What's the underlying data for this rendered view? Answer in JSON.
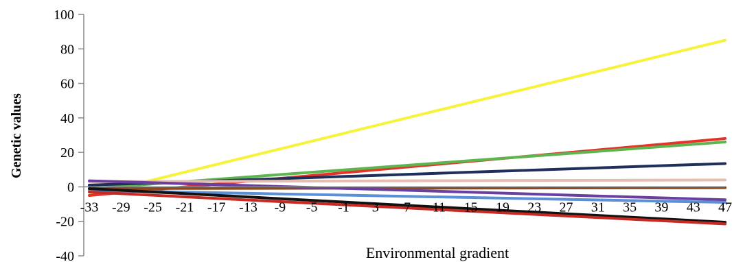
{
  "chart_data": {
    "type": "line",
    "xlabel": "Environmental gradient",
    "ylabel": "Genetic values",
    "x_ticks": [
      "-33",
      "-29",
      "-25",
      "-21",
      "-17",
      "-13",
      "-9",
      "-5",
      "-1",
      "3",
      "7",
      "11",
      "15",
      "19",
      "23",
      "27",
      "31",
      "35",
      "39",
      "43",
      "47"
    ],
    "y_ticks": [
      "100",
      "80",
      "60",
      "40",
      "20",
      "0",
      "-20",
      "-40"
    ],
    "xlim": [
      -33,
      47
    ],
    "ylim": [
      -40,
      100
    ],
    "grid": false,
    "legend": "none",
    "series": [
      {
        "color": "#f7f23a",
        "x": [
          -33,
          47
        ],
        "values": [
          -5,
          85
        ]
      },
      {
        "color": "#e53329",
        "x": [
          -33,
          47
        ],
        "values": [
          -5,
          28
        ]
      },
      {
        "color": "#5cb54f",
        "x": [
          -33,
          47
        ],
        "values": [
          -1,
          26
        ]
      },
      {
        "color": "#1d2f5a",
        "x": [
          -33,
          47
        ],
        "values": [
          1,
          13.5
        ]
      },
      {
        "color": "#e6bdb1",
        "x": [
          -33,
          47
        ],
        "values": [
          3,
          4
        ]
      },
      {
        "color": "#8b4a1e",
        "x": [
          -33,
          47
        ],
        "values": [
          -1,
          -0.5
        ]
      },
      {
        "color": "#6b3fa0",
        "x": [
          -33,
          47
        ],
        "values": [
          3.5,
          -7.5
        ]
      },
      {
        "color": "#5b8fd6",
        "x": [
          -33,
          47
        ],
        "values": [
          -2,
          -9
        ]
      },
      {
        "color": "#111111",
        "x": [
          -33,
          47
        ],
        "values": [
          -1,
          -20.5
        ]
      },
      {
        "color": "#c62a22",
        "x": [
          -33,
          47
        ],
        "values": [
          -3,
          -21.5
        ]
      }
    ]
  }
}
